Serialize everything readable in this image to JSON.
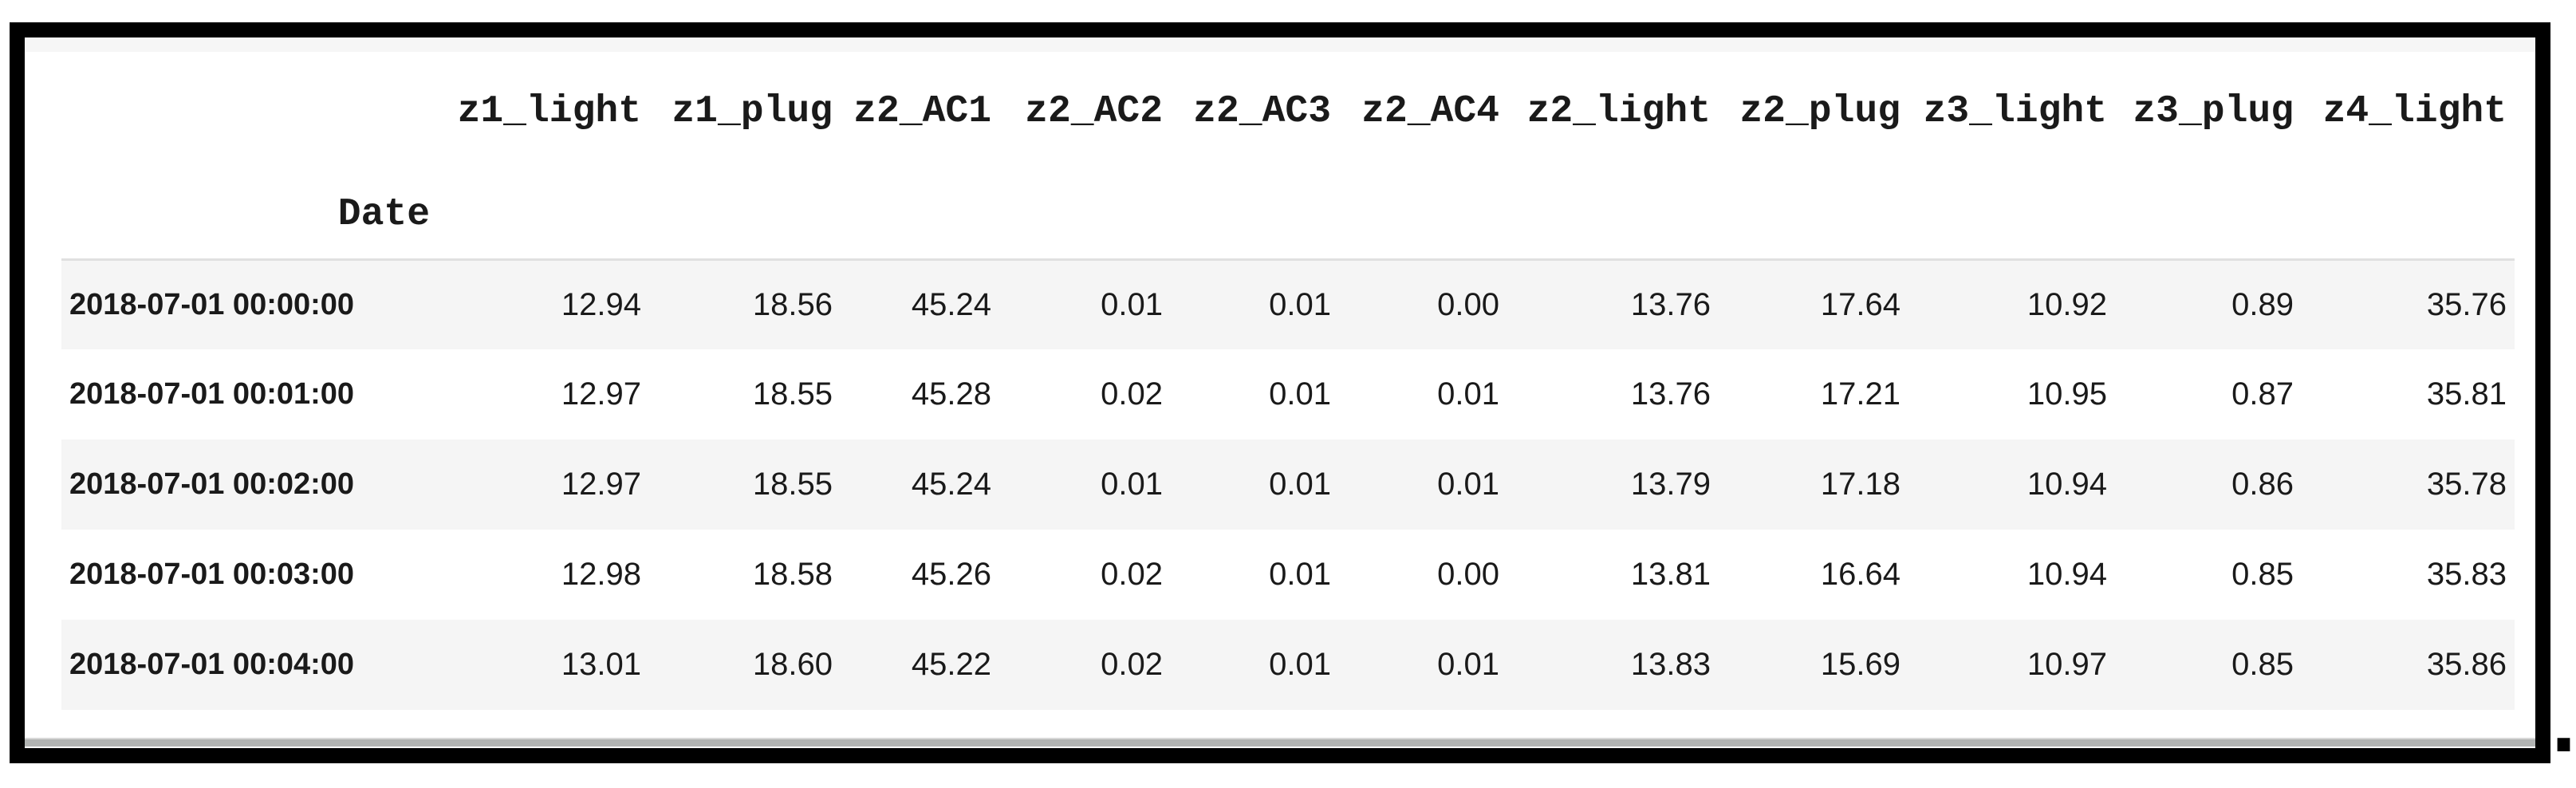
{
  "page": {
    "trailing_text": "."
  },
  "table": {
    "index_name": "Date",
    "columns": [
      "z1_light",
      "z1_plug",
      "z2_AC1",
      "z2_AC2",
      "z2_AC3",
      "z2_AC4",
      "z2_light",
      "z2_plug",
      "z3_light",
      "z3_plug",
      "z4_light"
    ],
    "rows": [
      {
        "index": "2018-07-01 00:00:00",
        "values": [
          "12.94",
          "18.56",
          "45.24",
          "0.01",
          "0.01",
          "0.00",
          "13.76",
          "17.64",
          "10.92",
          "0.89",
          "35.76"
        ]
      },
      {
        "index": "2018-07-01 00:01:00",
        "values": [
          "12.97",
          "18.55",
          "45.28",
          "0.02",
          "0.01",
          "0.01",
          "13.76",
          "17.21",
          "10.95",
          "0.87",
          "35.81"
        ]
      },
      {
        "index": "2018-07-01 00:02:00",
        "values": [
          "12.97",
          "18.55",
          "45.24",
          "0.01",
          "0.01",
          "0.01",
          "13.79",
          "17.18",
          "10.94",
          "0.86",
          "35.78"
        ]
      },
      {
        "index": "2018-07-01 00:03:00",
        "values": [
          "12.98",
          "18.58",
          "45.26",
          "0.02",
          "0.01",
          "0.00",
          "13.81",
          "16.64",
          "10.94",
          "0.85",
          "35.83"
        ]
      },
      {
        "index": "2018-07-01 00:04:00",
        "values": [
          "13.01",
          "18.60",
          "45.22",
          "0.02",
          "0.01",
          "0.01",
          "13.83",
          "15.69",
          "10.97",
          "0.85",
          "35.86"
        ]
      }
    ]
  },
  "colors": {
    "frame_border": "#000000",
    "row_stripe": "#f5f5f5",
    "header_separator": "#e0e0e0",
    "scrollbar": "#b2b4b3",
    "text": "#1a1a1a"
  }
}
